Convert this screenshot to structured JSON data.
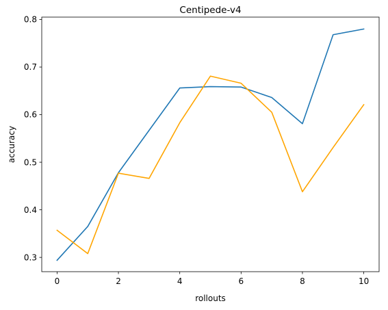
{
  "chart_data": {
    "type": "line",
    "title": "Centipede-v4",
    "xlabel": "rollouts",
    "ylabel": "accuracy",
    "xlim": [
      -0.5,
      10.5
    ],
    "ylim": [
      0.27,
      0.805
    ],
    "x": [
      0,
      1,
      2,
      3,
      4,
      5,
      6,
      7,
      8,
      9,
      10
    ],
    "xticks": [
      0,
      2,
      4,
      6,
      8,
      10
    ],
    "yticks": [
      0.3,
      0.4,
      0.5,
      0.6,
      0.7,
      0.8
    ],
    "ytick_labels": [
      "0.3",
      "0.4",
      "0.5",
      "0.6",
      "0.7",
      "0.8"
    ],
    "grid": false,
    "legend": "none",
    "series": [
      {
        "color": "#1f77b4",
        "values": [
          0.294,
          0.365,
          0.478,
          0.567,
          0.656,
          0.659,
          0.658,
          0.636,
          0.581,
          0.768,
          0.78
        ]
      },
      {
        "color": "#ffa500",
        "values": [
          0.357,
          0.308,
          0.477,
          0.466,
          0.583,
          0.681,
          0.666,
          0.605,
          0.438,
          0.531,
          0.621
        ]
      }
    ]
  }
}
